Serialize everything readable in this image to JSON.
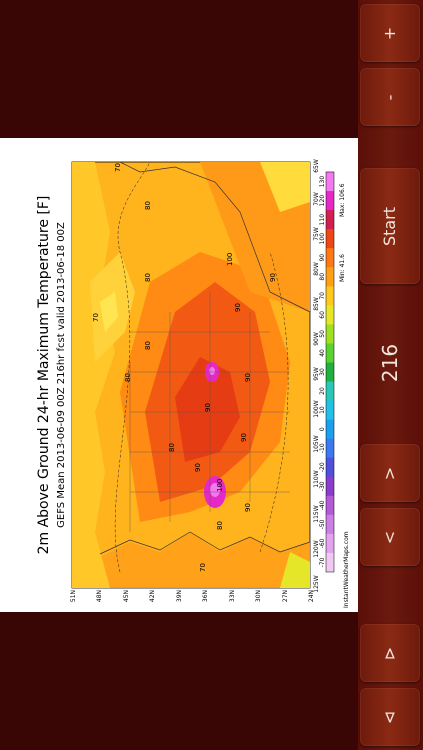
{
  "controls": {
    "plus": "+",
    "minus": "-",
    "start": "Start",
    "step": "216",
    "next": ">",
    "prev": "<",
    "last": "⊳",
    "first": "⊲"
  },
  "map": {
    "title": "2m Above Ground 24-hr Maximum Temperature [F]",
    "subtitle": "GEFS Mean 2013-06-09 00Z 216hr fcst valid 2013-06-18 00Z",
    "credit": "InstantWeatherMaps.com",
    "lat_labels": [
      "51N",
      "48N",
      "45N",
      "42N",
      "39N",
      "36N",
      "33N",
      "30N",
      "27N",
      "24N"
    ],
    "lon_labels": [
      "125W",
      "120W",
      "115W",
      "110W",
      "105W",
      "100W",
      "95W",
      "90W",
      "85W",
      "80W",
      "75W",
      "70W",
      "65W"
    ],
    "scale_values": [
      "-70",
      "-60",
      "-50",
      "-40",
      "-30",
      "-20",
      "-10",
      "0",
      "10",
      "20",
      "30",
      "40",
      "50",
      "60",
      "70",
      "80",
      "90",
      "100",
      "110",
      "120",
      "130"
    ],
    "scale_colors": [
      "#f2c7f2",
      "#e2a2f0",
      "#cc7ee4",
      "#b45ad8",
      "#8c3ccc",
      "#5050dc",
      "#3c78f0",
      "#1aa0f0",
      "#22c0e8",
      "#28c8b8",
      "#20b040",
      "#5ad230",
      "#a0e020",
      "#e6e628",
      "#ffc81e",
      "#ffa014",
      "#ff7814",
      "#f04614",
      "#d21e50",
      "#e628c8",
      "#f578f0"
    ],
    "min_label": "Min: 41.6",
    "max_label": "Max: 106.6",
    "contour_labels": [
      "70",
      "80",
      "90",
      "100",
      "90",
      "80",
      "90",
      "90",
      "80",
      "90",
      "80",
      "70",
      "90",
      "80",
      "100",
      "90",
      "80",
      "70"
    ]
  }
}
